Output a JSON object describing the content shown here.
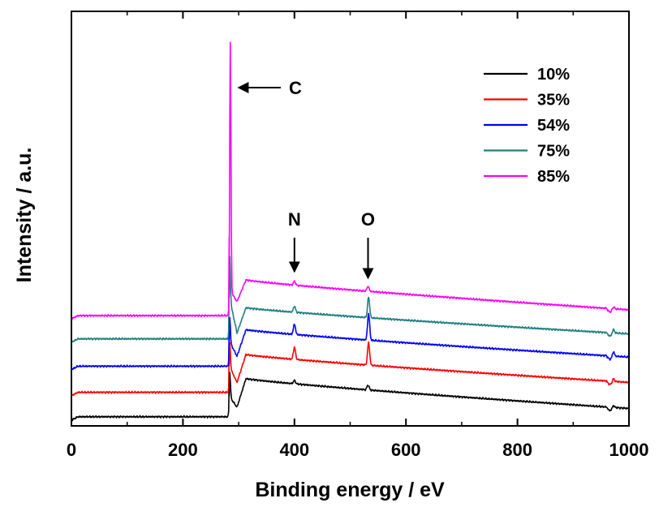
{
  "chart_data": {
    "type": "line",
    "title": "",
    "xlabel": "Binding energy / eV",
    "ylabel": "Intensity / a.u.",
    "xlim": [
      0,
      1000
    ],
    "ylim": [
      0,
      100
    ],
    "xticks": [
      0,
      200,
      400,
      600,
      800,
      1000
    ],
    "xtick_labels": [
      "0",
      "200",
      "400",
      "600",
      "800",
      "1000"
    ],
    "y_tick_labels_shown": false,
    "grid": false,
    "legend_position": "top-right",
    "annotations": [
      {
        "label": "C",
        "x": 285,
        "arrow": "left"
      },
      {
        "label": "N",
        "x": 400,
        "arrow": "down"
      },
      {
        "label": "O",
        "x": 532,
        "arrow": "down"
      }
    ],
    "series": [
      {
        "name": "10%",
        "color": "#000000",
        "baseline": 2.2,
        "jump": 283,
        "edge": 7.2,
        "dip": 4.5,
        "hump": 11.4,
        "end": 4.2,
        "peaks": [
          {
            "x": 284,
            "h": 6
          },
          {
            "x": 400,
            "h": 0.8
          },
          {
            "x": 532,
            "h": 1.2
          },
          {
            "x": 972,
            "h": 0.6
          }
        ]
      },
      {
        "name": "35%",
        "color": "#ff0000",
        "baseline": 8.1,
        "jump": 283,
        "edge": 14.5,
        "dip": 10.5,
        "hump": 17.2,
        "end": 10.5,
        "peaks": [
          {
            "x": 284,
            "h": 6
          },
          {
            "x": 400,
            "h": 3.0
          },
          {
            "x": 533,
            "h": 5.5
          },
          {
            "x": 972,
            "h": 0.8
          }
        ]
      },
      {
        "name": "54%",
        "color": "#0000ff",
        "baseline": 14.4,
        "jump": 283,
        "edge": 20.5,
        "dip": 16.8,
        "hump": 23.2,
        "end": 16.6,
        "peaks": [
          {
            "x": 284,
            "h": 6
          },
          {
            "x": 400,
            "h": 2.5
          },
          {
            "x": 533,
            "h": 6.5
          },
          {
            "x": 972,
            "h": 1.2
          }
        ]
      },
      {
        "name": "75%",
        "color": "#1f7f7f",
        "baseline": 21.0,
        "jump": 283,
        "edge": 31.2,
        "dip": 22.4,
        "hump": 28.5,
        "end": 22.2,
        "peaks": [
          {
            "x": 284,
            "h": 10
          },
          {
            "x": 400,
            "h": 1.5
          },
          {
            "x": 533,
            "h": 5.0
          },
          {
            "x": 972,
            "h": 1.0
          }
        ]
      },
      {
        "name": "85%",
        "color": "#ff00ff",
        "baseline": 26.6,
        "jump": 283,
        "edge": 33.0,
        "dip": 30.0,
        "hump": 35.2,
        "end": 28.0,
        "peaks": [
          {
            "x": 285,
            "h": 60
          },
          {
            "x": 400,
            "h": 0.9
          },
          {
            "x": 532,
            "h": 1.2
          },
          {
            "x": 972,
            "h": 0.6
          }
        ]
      }
    ]
  }
}
